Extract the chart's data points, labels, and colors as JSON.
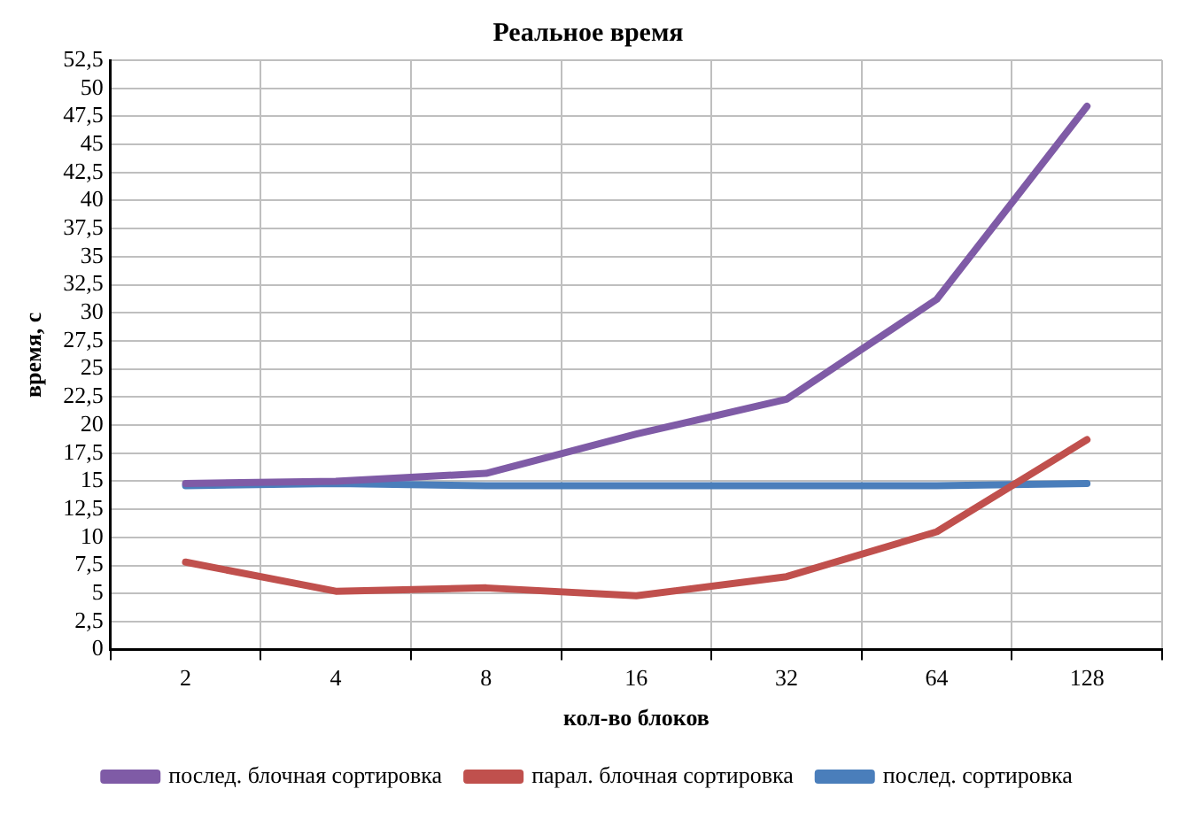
{
  "chart_data": {
    "type": "line",
    "title": "Реальное время",
    "xlabel": "кол-во блоков",
    "ylabel": "время, с",
    "categories": [
      "2",
      "4",
      "8",
      "16",
      "32",
      "64",
      "128"
    ],
    "series": [
      {
        "name": "послед. блочная сортировка",
        "color": "#7f5ba6",
        "values": [
          14.8,
          15.0,
          15.7,
          19.2,
          22.3,
          31.2,
          48.4
        ]
      },
      {
        "name": "парал. блочная сортировка",
        "color": "#c0504d",
        "values": [
          7.8,
          5.2,
          5.5,
          4.8,
          6.5,
          10.5,
          18.7
        ]
      },
      {
        "name": "послед. сортировка",
        "color": "#4a7ebb",
        "values": [
          14.6,
          14.8,
          14.6,
          14.6,
          14.6,
          14.6,
          14.8
        ]
      }
    ],
    "ylim": [
      0,
      52.5
    ],
    "yticks": [
      0,
      {
        "value": 2.5,
        "label": "2,5"
      },
      5,
      {
        "value": 7.5,
        "label": "7,5"
      },
      10,
      {
        "value": 12.5,
        "label": "12,5"
      },
      15,
      {
        "value": 17.5,
        "label": "17,5"
      },
      20,
      {
        "value": 22.5,
        "label": "22,5"
      },
      25,
      {
        "value": 27.5,
        "label": "27,5"
      },
      30,
      {
        "value": 32.5,
        "label": "32,5"
      },
      35,
      {
        "value": 37.5,
        "label": "37,5"
      },
      40,
      {
        "value": 42.5,
        "label": "42,5"
      },
      45,
      {
        "value": 47.5,
        "label": "47,5"
      },
      50,
      {
        "value": 52.5,
        "label": "52,5"
      }
    ],
    "grid": true,
    "legend": "bottom",
    "marker": "none",
    "line_style": "solid"
  }
}
